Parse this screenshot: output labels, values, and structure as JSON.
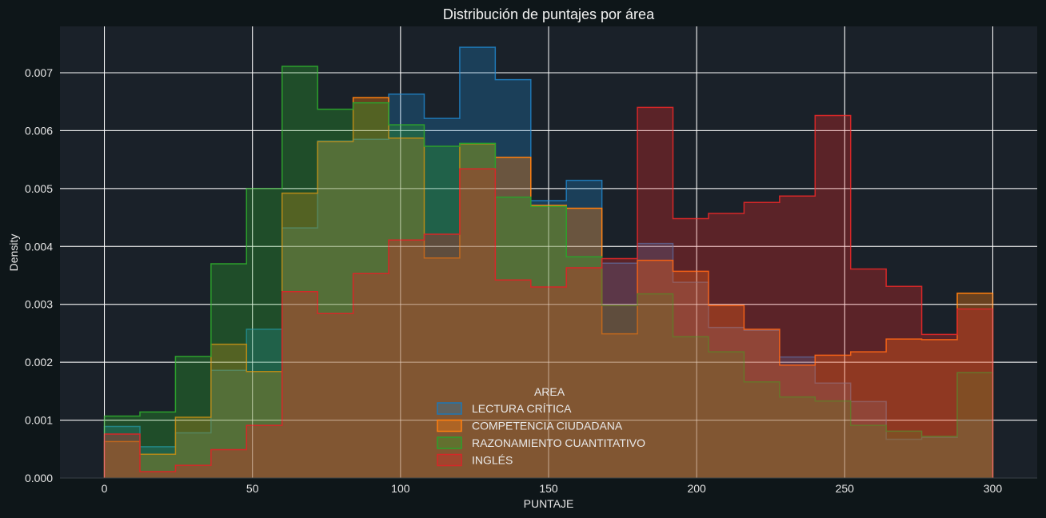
{
  "chart_data": {
    "type": "histogram",
    "title": "Distribución de puntajes por área",
    "xlabel": "PUNTAJE",
    "ylabel": "Density",
    "xlim": [
      -15,
      315
    ],
    "ylim": [
      0,
      0.0078
    ],
    "x_ticks": [
      "0",
      "50",
      "100",
      "150",
      "200",
      "250",
      "300"
    ],
    "x_tick_values": [
      0,
      50,
      100,
      150,
      200,
      250,
      300
    ],
    "y_ticks": [
      "0.000",
      "0.001",
      "0.002",
      "0.003",
      "0.004",
      "0.005",
      "0.006",
      "0.007"
    ],
    "y_tick_values": [
      0,
      0.001,
      0.002,
      0.003,
      0.004,
      0.005,
      0.006,
      0.007
    ],
    "grid": true,
    "legend": {
      "title": "AREA",
      "placement": "bottom-center"
    },
    "bin_edges": [
      0,
      12,
      24,
      36,
      48,
      60,
      72,
      84,
      96,
      108,
      120,
      132,
      144,
      156,
      168,
      180,
      192,
      204,
      216,
      228,
      240,
      252,
      264,
      276,
      288,
      300
    ],
    "series": [
      {
        "name": "LECTURA CRÍTICA",
        "color": "#1f77b4",
        "values": [
          0.00089,
          0.00054,
          0.00078,
          0.00186,
          0.00257,
          0.00432,
          0.00582,
          0.00585,
          0.00663,
          0.00621,
          0.00744,
          0.00688,
          0.00479,
          0.00514,
          0.00371,
          0.00405,
          0.00338,
          0.0026,
          0.00255,
          0.00209,
          0.00164,
          0.00132,
          0.00067,
          0.0007,
          0.001
        ]
      },
      {
        "name": "COMPETENCIA CIUDADANA",
        "color": "#ff7f0e",
        "values": [
          0.00063,
          0.00041,
          0.00105,
          0.00231,
          0.00184,
          0.00492,
          0.00581,
          0.00657,
          0.00587,
          0.0038,
          0.00577,
          0.00554,
          0.00471,
          0.00466,
          0.00249,
          0.00376,
          0.00357,
          0.00298,
          0.00257,
          0.00195,
          0.00212,
          0.00218,
          0.0024,
          0.00239,
          0.00319
        ]
      },
      {
        "name": "RAZONAMIENTO CUANTITATIVO",
        "color": "#2ca02c",
        "values": [
          0.00107,
          0.00114,
          0.0021,
          0.0037,
          0.005,
          0.00711,
          0.00637,
          0.00648,
          0.0061,
          0.00573,
          0.00578,
          0.00485,
          0.00469,
          0.00382,
          0.00298,
          0.00318,
          0.00244,
          0.00218,
          0.00166,
          0.0014,
          0.00133,
          0.00091,
          0.00081,
          0.00072,
          0.00182
        ]
      },
      {
        "name": "INGLÉS",
        "color": "#d62728",
        "values": [
          0.00076,
          0.00011,
          0.00022,
          0.00049,
          0.00091,
          0.00322,
          0.00284,
          0.00353,
          0.00411,
          0.00421,
          0.00534,
          0.00342,
          0.0033,
          0.00363,
          0.00379,
          0.0064,
          0.00448,
          0.00457,
          0.00476,
          0.00487,
          0.00626,
          0.00361,
          0.00331,
          0.00248,
          0.00292
        ]
      }
    ]
  }
}
